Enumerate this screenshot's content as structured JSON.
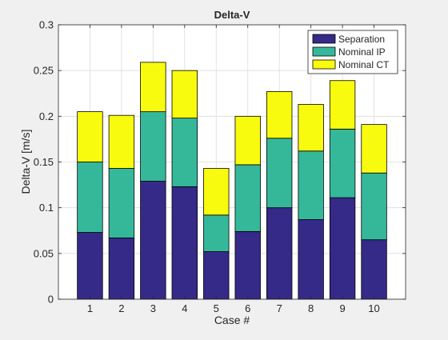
{
  "chart_data": {
    "type": "bar",
    "stacked": true,
    "title": "Delta-V",
    "xlabel": "Case #",
    "ylabel": "Delta-V [m/s]",
    "categories": [
      "1",
      "2",
      "3",
      "4",
      "5",
      "6",
      "7",
      "8",
      "9",
      "10"
    ],
    "xlim": [
      0,
      11
    ],
    "ylim": [
      0,
      0.3
    ],
    "yticks": [
      "0",
      "0.05",
      "0.1",
      "0.15",
      "0.2",
      "0.25",
      "0.3"
    ],
    "grid": true,
    "legend_location": "top-right",
    "series": [
      {
        "name": "Separation",
        "color": "#352a87",
        "values": [
          0.073,
          0.067,
          0.129,
          0.123,
          0.052,
          0.074,
          0.1,
          0.087,
          0.111,
          0.065
        ]
      },
      {
        "name": "Nominal IP",
        "color": "#35b89a",
        "values": [
          0.077,
          0.076,
          0.076,
          0.075,
          0.04,
          0.073,
          0.076,
          0.075,
          0.075,
          0.073
        ]
      },
      {
        "name": "Nominal CT",
        "color": "#f9fb0e",
        "values": [
          0.055,
          0.058,
          0.054,
          0.052,
          0.051,
          0.053,
          0.051,
          0.051,
          0.053,
          0.053
        ]
      }
    ]
  }
}
